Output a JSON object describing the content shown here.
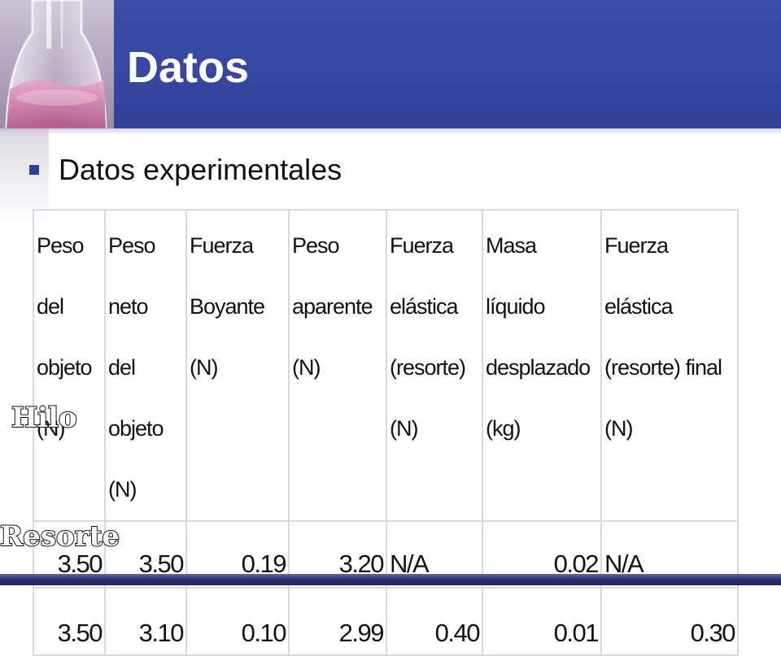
{
  "slide": {
    "title": "Datos",
    "bullet": "Datos experimentales"
  },
  "labels": {
    "row1": "Hilo",
    "row2": "Resorte"
  },
  "table": {
    "headers": [
      [
        "Peso del",
        "objeto",
        "(N)"
      ],
      [
        "Peso neto",
        "del objeto",
        "(N)"
      ],
      [
        "Fuerza",
        "Boyante (N)"
      ],
      [
        "Peso",
        "aparente (N)"
      ],
      [
        "Fuerza",
        "elástica",
        "(resorte) (N)"
      ],
      [
        "Masa líquido",
        "desplazado (kg)"
      ],
      [
        "Fuerza elástica",
        "(resorte) final (N)"
      ]
    ],
    "rows": [
      [
        "3.50",
        "3.50",
        "0.19",
        "3.20",
        "N/A",
        "0.02",
        "N/A"
      ],
      [
        "3.50",
        "3.10",
        "0.10",
        "2.99",
        "0.40",
        "0.01",
        "0.30"
      ]
    ]
  },
  "colors": {
    "header_bar": "#3547a0",
    "bullet": "#2f3f95",
    "table_border": "#d3dbe6"
  },
  "icons": [
    "flask-image",
    "bullet-square-icon"
  ]
}
